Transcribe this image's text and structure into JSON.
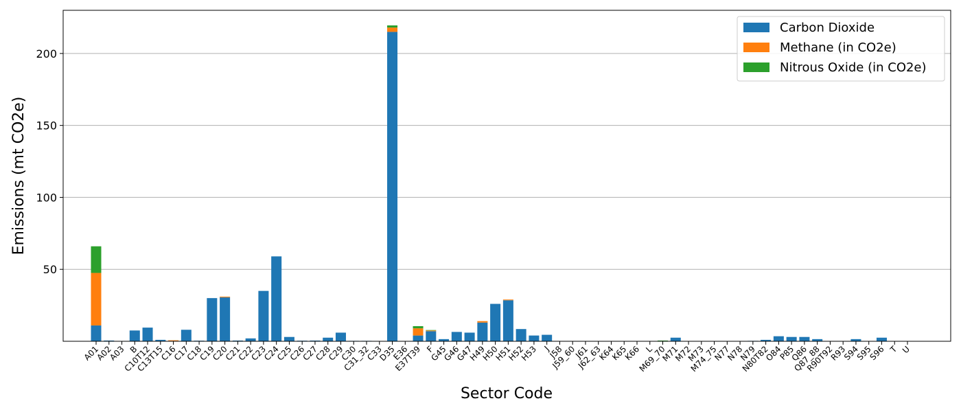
{
  "chart_data": {
    "type": "bar",
    "stacked": true,
    "xlabel": "Sector Code",
    "ylabel": "Emissions (mt CO2e)",
    "ylim": [
      0,
      230
    ],
    "yticks": [
      50,
      100,
      150,
      200
    ],
    "grid": "horizontal",
    "legend_position": "top-right",
    "categories": [
      "A01",
      "A02",
      "A03",
      "B",
      "C10T12",
      "C13T15",
      "C16",
      "C17",
      "C18",
      "C19",
      "C20",
      "C21",
      "C22",
      "C23",
      "C24",
      "C25",
      "C26",
      "C27",
      "C28",
      "C29",
      "C30",
      "C31_32",
      "C33",
      "D35",
      "E36",
      "E37T39",
      "F",
      "G45",
      "G46",
      "G47",
      "H49",
      "H50",
      "H51",
      "H52",
      "H53",
      "J",
      "J58",
      "J59_60",
      "J61",
      "J62_63",
      "K64",
      "K65",
      "K66",
      "L",
      "M69_70",
      "M71",
      "M72",
      "M73",
      "M74_75",
      "N77",
      "N78",
      "N79",
      "N80T82",
      "O84",
      "P85",
      "Q86",
      "Q87_88",
      "R90T92",
      "R93",
      "S94",
      "S95",
      "S96",
      "T",
      "U"
    ],
    "series": [
      {
        "name": "Carbon Dioxide",
        "color": "#1f77b4",
        "values": [
          11,
          0.5,
          0.2,
          7.5,
          9.5,
          1,
          0.3,
          8,
          0.4,
          30,
          30.5,
          0.5,
          2,
          35,
          59,
          3,
          0.4,
          0.5,
          2.5,
          6,
          0.3,
          0.3,
          0.1,
          215,
          0,
          4,
          7,
          1.5,
          6.5,
          6,
          13,
          26,
          28.5,
          8.5,
          4,
          4.5,
          0,
          0,
          0,
          0.2,
          0,
          0,
          0,
          0,
          0,
          2.5,
          0.2,
          0,
          0,
          0,
          0,
          0.3,
          1,
          3.5,
          3,
          3,
          1.5,
          0,
          0,
          1.5,
          0,
          2.5,
          0,
          0
        ]
      },
      {
        "name": "Methane (in CO2e)",
        "color": "#ff7f0e",
        "values": [
          36.5,
          0,
          0,
          0,
          0,
          0,
          0.4,
          0,
          0,
          0,
          0.5,
          0,
          0,
          0,
          0,
          0,
          0,
          0,
          0,
          0,
          0,
          0,
          0,
          3,
          0,
          5,
          0.5,
          0,
          0,
          0,
          1,
          0,
          0.5,
          0,
          0,
          0,
          0,
          0,
          0,
          0,
          0,
          0,
          0,
          0,
          0,
          0,
          0,
          0,
          0,
          0,
          0,
          0,
          0,
          0,
          0,
          0,
          0,
          0,
          0,
          0,
          0,
          0,
          0,
          0
        ]
      },
      {
        "name": "Nitrous Oxide (in CO2e)",
        "color": "#2ca02c",
        "values": [
          18.5,
          0,
          0,
          0,
          0,
          0,
          0,
          0,
          0,
          0,
          0,
          0,
          0,
          0,
          0,
          0,
          0,
          0,
          0,
          0,
          0,
          0,
          0,
          1.5,
          0,
          1.5,
          0.3,
          0,
          0,
          0,
          0,
          0,
          0,
          0,
          0,
          0,
          0,
          0,
          0,
          0,
          0,
          0,
          0,
          0,
          0.5,
          0,
          0,
          0,
          0,
          0,
          0,
          0,
          0,
          0,
          0,
          0,
          0,
          0,
          0,
          0,
          0,
          0,
          0,
          0
        ]
      }
    ]
  }
}
